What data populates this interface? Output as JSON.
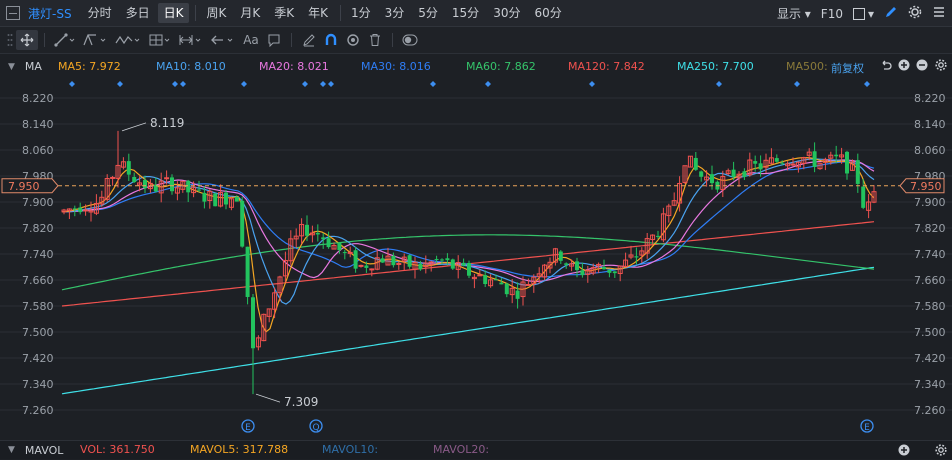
{
  "header": {
    "stock_name": "港灯-SS",
    "periods": [
      {
        "label": "分时",
        "active": false
      },
      {
        "label": "多日",
        "active": false
      },
      {
        "label": "日K",
        "active": true
      },
      {
        "label": "周K",
        "active": false
      },
      {
        "label": "月K",
        "active": false
      },
      {
        "label": "季K",
        "active": false
      },
      {
        "label": "年K",
        "active": false
      },
      {
        "label": "1分",
        "active": false
      },
      {
        "label": "3分",
        "active": false
      },
      {
        "label": "5分",
        "active": false
      },
      {
        "label": "15分",
        "active": false
      },
      {
        "label": "30分",
        "active": false
      },
      {
        "label": "60分",
        "active": false
      }
    ],
    "display_label": "显示",
    "f10_label": "F10"
  },
  "toolbar": {
    "text_tool": "Aa"
  },
  "ma_bar": {
    "label": "MA",
    "items": [
      {
        "text": "MA5: 7.972",
        "color": "#f5a623"
      },
      {
        "text": "MA10: 8.010",
        "color": "#4aa3f0"
      },
      {
        "text": "MA20: 8.021",
        "color": "#e878e0"
      },
      {
        "text": "MA30: 8.016",
        "color": "#2f7df5"
      },
      {
        "text": "MA60: 7.862",
        "color": "#35c46b"
      },
      {
        "text": "MA120: 7.842",
        "color": "#f0524f"
      },
      {
        "text": "MA250: 7.700",
        "color": "#3fe0e8"
      },
      {
        "text": "MA500:",
        "color": "#8a7a3a"
      }
    ],
    "adjust_label": "前复权"
  },
  "price_axis": {
    "ticks": [
      "8.220",
      "8.140",
      "8.060",
      "7.980",
      "7.900",
      "7.820",
      "7.740",
      "7.660",
      "7.580",
      "7.500",
      "7.420",
      "7.340",
      "7.260"
    ],
    "current_price": "7.950",
    "high_label": "8.119",
    "low_label": "7.309"
  },
  "event_markers": [
    "E",
    "Q",
    "E"
  ],
  "mavol_bar": {
    "label": "MAVOL",
    "items": [
      {
        "text": "VOL: 361.750",
        "color": "#f0524f"
      },
      {
        "text": "MAVOL5: 317.788",
        "color": "#f5a623"
      },
      {
        "text": "MAVOL10:",
        "color": "#2f6fa8"
      },
      {
        "text": "MAVOL20:",
        "color": "#8a5a88"
      }
    ]
  },
  "colors": {
    "up": "#f0524f",
    "down": "#22c35e",
    "background": "#1d2025",
    "grid": "#2a2e35",
    "current_price_line": "#e9a35a",
    "ma5": "#f5a623",
    "ma10": "#4aa3f0",
    "ma20": "#e878e0",
    "ma30": "#2f7df5",
    "ma60": "#35c46b",
    "ma120": "#f0524f",
    "ma250": "#3fe0e8"
  },
  "chart_data": {
    "type": "candlestick",
    "price_range": [
      7.23,
      8.26
    ],
    "current_price": 7.95,
    "period_high": 8.119,
    "period_low": 7.309
  }
}
